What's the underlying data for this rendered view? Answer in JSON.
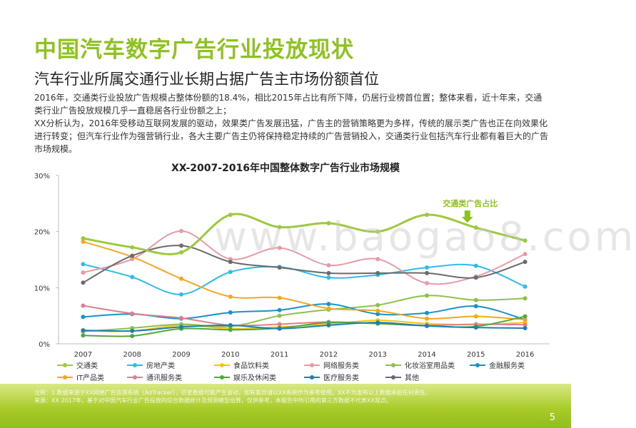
{
  "page": {
    "title": "中国汽车数字广告行业投放现状",
    "subtitle": "汽车行业所属交通行业长期占据广告主市场份额首位",
    "paragraphs": [
      "2016年，交通类行业投放广告规模占整体份额的18.4%，相比2015年占比有所下降，仍居行业榜首位置；整体来看，近十年来，交通类行业广告投放规模几乎一直稳居各行业份额之上；",
      "XX分析认为，2016年受移动互联网发展的驱动，效果类广告发展迅猛，广告主的营销策略更为多样，传统的展示类广告也正在向效果化进行转变；但汽车行业作为强营销行业，各大主要广告主仍将保持稳定持续的广告营销投入，交通类行业包括汽车行业都有着巨大的广告市场规模。"
    ],
    "watermark": "www.baogao8.com",
    "footer_lines": [
      "注释：1.数据来源于XX网络广告监测系统（AdTracker），历史数据可能产生波动，如有差异请以XX系统作为参考使用。XX不为发布以上数据承担任何责任。",
      "来源：XX 2017年，基于对中国汽车行业广告投放的综合数据统计及预测模型估算，仅供参考，本报告中所引用的第三方数据不代表XX观点。"
    ],
    "page_number": "5"
  },
  "colors": {
    "交通类": "#9dc93d",
    "房地产类": "#2fbde8",
    "食品饮料类": "#f7c512",
    "网络服务类": "#e89aa6",
    "化妆浴室用品类": "#8fc04a",
    "金融服务类": "#1a92c9",
    "IT产品类": "#f5a623",
    "通讯服务类": "#e07e90",
    "娱乐及休闲类": "#52a73c",
    "医疗服务类": "#1e7fb5",
    "其他": "#6b6b6b"
  },
  "chart_data": {
    "type": "line",
    "title": "XX-2007-2016年中国整体数字广告行业市场规模",
    "x": [
      "2007",
      "2008",
      "2009",
      "2010",
      "2011",
      "2012",
      "2013",
      "2014",
      "2015",
      "2016"
    ],
    "y_ticks": [
      "0%",
      "10%",
      "20%",
      "30%"
    ],
    "ylim": [
      0,
      30
    ],
    "annotation": "交通类广告占比",
    "grid": false,
    "legend_position": "bottom",
    "series": [
      {
        "name": "交通类",
        "values": [
          18.8,
          17.2,
          16.3,
          23.0,
          20.8,
          21.5,
          20.0,
          23.0,
          20.7,
          18.4
        ]
      },
      {
        "name": "房地产类",
        "values": [
          14.2,
          11.9,
          8.8,
          12.8,
          13.7,
          11.8,
          12.3,
          13.6,
          13.9,
          10.2
        ]
      },
      {
        "name": "食品饮料类",
        "values": [
          2.3,
          2.3,
          3.3,
          2.7,
          3.0,
          3.5,
          4.2,
          3.6,
          3.4,
          3.8
        ]
      },
      {
        "name": "网络服务类",
        "values": [
          12.7,
          15.1,
          20.1,
          15.1,
          17.1,
          14.0,
          15.1,
          10.8,
          12.0,
          16.0
        ]
      },
      {
        "name": "化妆浴室用品类",
        "values": [
          2.2,
          2.8,
          3.5,
          3.1,
          5.0,
          6.1,
          6.9,
          8.6,
          7.8,
          8.1
        ]
      },
      {
        "name": "金融服务类",
        "values": [
          4.8,
          5.3,
          4.5,
          5.6,
          6.0,
          7.1,
          5.3,
          5.5,
          6.7,
          4.3
        ]
      },
      {
        "name": "IT产品类",
        "values": [
          18.2,
          15.5,
          11.6,
          8.4,
          8.2,
          6.3,
          5.9,
          4.5,
          4.9,
          4.3
        ]
      },
      {
        "name": "通讯服务类",
        "values": [
          6.8,
          5.4,
          4.6,
          3.3,
          3.5,
          3.9,
          3.6,
          3.3,
          3.5,
          3.4
        ]
      },
      {
        "name": "娱乐及休闲类",
        "values": [
          1.5,
          1.4,
          2.7,
          2.5,
          2.8,
          3.8,
          3.6,
          3.2,
          3.1,
          4.9
        ]
      },
      {
        "name": "医疗服务类",
        "values": [
          2.4,
          2.3,
          3.0,
          3.3,
          2.7,
          3.3,
          3.8,
          3.2,
          2.9,
          2.8
        ]
      },
      {
        "name": "其他",
        "values": [
          10.9,
          15.7,
          17.5,
          14.6,
          13.6,
          12.6,
          12.6,
          12.6,
          11.8,
          14.6
        ]
      }
    ]
  }
}
